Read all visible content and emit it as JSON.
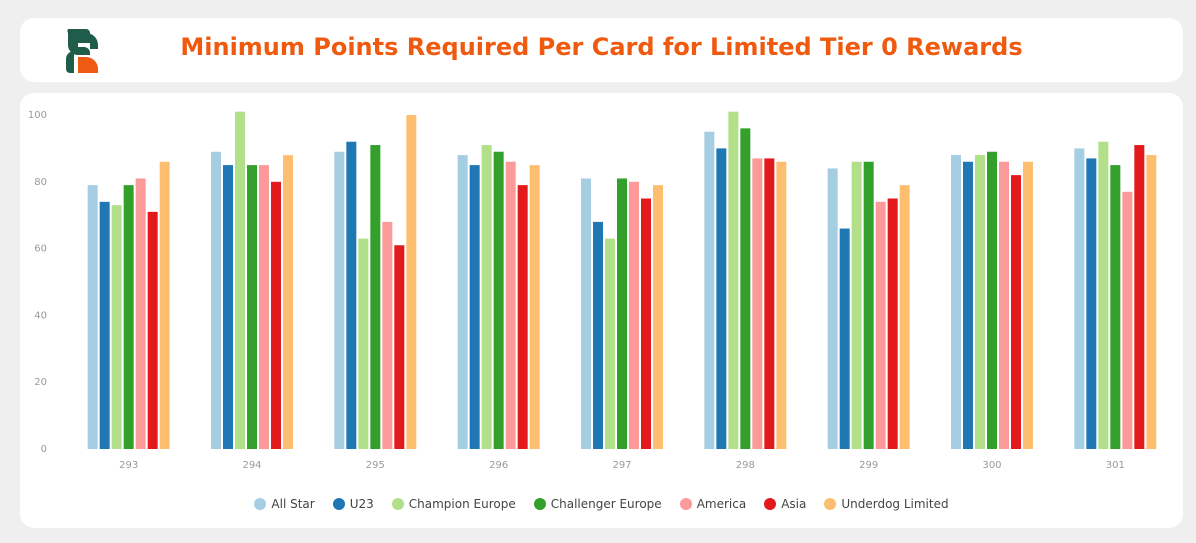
{
  "header": {
    "title": "Minimum Points Required Per Card for Limited Tier 0 Rewards"
  },
  "colors": {
    "title": "#ef5a0f",
    "logo_dark": "#1f5c4a",
    "logo_orange": "#ee5a14"
  },
  "icons": {
    "logo": "brand-logo-icon"
  },
  "chart_data": {
    "type": "bar",
    "title": "Minimum Points Required Per Card for Limited Tier 0 Rewards",
    "xlabel": "",
    "ylabel": "",
    "ylim": [
      0,
      100
    ],
    "yticks": [
      0,
      20,
      40,
      60,
      80,
      100
    ],
    "grid": false,
    "legend_position": "bottom",
    "categories": [
      "293",
      "294",
      "295",
      "296",
      "297",
      "298",
      "299",
      "300",
      "301"
    ],
    "series": [
      {
        "name": "All Star",
        "color": "#a6cee3",
        "values": [
          79,
          89,
          89,
          88,
          81,
          95,
          84,
          88,
          90
        ]
      },
      {
        "name": "U23",
        "color": "#1f78b4",
        "values": [
          74,
          85,
          92,
          85,
          68,
          90,
          66,
          86,
          87
        ]
      },
      {
        "name": "Champion Europe",
        "color": "#b2df8a",
        "values": [
          73,
          101,
          63,
          91,
          63,
          101,
          86,
          88,
          92
        ]
      },
      {
        "name": "Challenger Europe",
        "color": "#33a02c",
        "values": [
          79,
          85,
          91,
          89,
          81,
          96,
          86,
          89,
          85
        ]
      },
      {
        "name": "America",
        "color": "#fb9a99",
        "values": [
          81,
          85,
          68,
          86,
          80,
          87,
          74,
          86,
          77
        ]
      },
      {
        "name": "Asia",
        "color": "#e31a1c",
        "values": [
          71,
          80,
          61,
          79,
          75,
          87,
          75,
          82,
          91
        ]
      },
      {
        "name": "Underdog Limited",
        "color": "#fdbf6f",
        "values": [
          86,
          88,
          100,
          85,
          79,
          86,
          79,
          86,
          88
        ]
      }
    ]
  }
}
